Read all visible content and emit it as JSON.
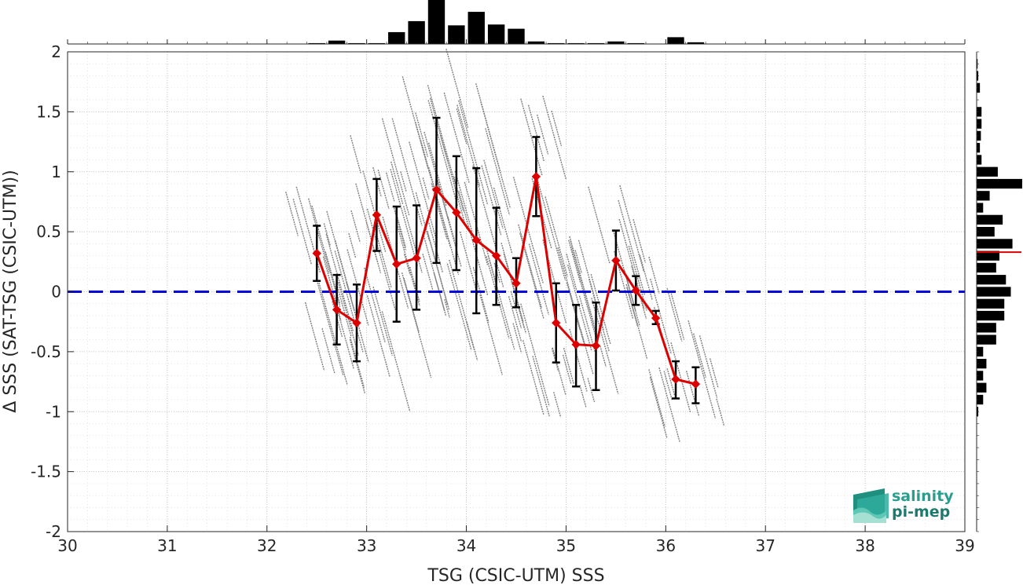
{
  "chart_data": {
    "type": "scatter",
    "xlabel": "TSG (CSIC-UTM) SSS",
    "ylabel": "Δ SSS (SAT-TSG (CSIC-UTM))",
    "xlim": [
      30,
      39
    ],
    "ylim": [
      -2,
      2
    ],
    "xticks": [
      30,
      31,
      32,
      33,
      34,
      35,
      36,
      37,
      38,
      39
    ],
    "yticks": [
      2,
      1.5,
      1,
      0.5,
      0,
      -0.5,
      -1,
      -1.5,
      -2
    ],
    "ytick_labels": [
      "2",
      "1.5",
      "1",
      "0.5",
      "0",
      "-0.5",
      "-1",
      "-1.5",
      "-2"
    ],
    "grid": true,
    "reference_line": {
      "y": 0,
      "color": "#0000dd",
      "style": "dashed"
    },
    "series": [
      {
        "color": "#dd0000",
        "marker": "diamond",
        "x": [
          32.5,
          32.7,
          32.9,
          33.1,
          33.3,
          33.5,
          33.7,
          33.9,
          34.1,
          34.3,
          34.5,
          34.7,
          34.9,
          35.1,
          35.3,
          35.5,
          35.7,
          35.9,
          36.1,
          36.3
        ],
        "y": [
          0.32,
          -0.15,
          -0.26,
          0.64,
          0.23,
          0.28,
          0.85,
          0.66,
          0.43,
          0.3,
          0.07,
          0.96,
          -0.26,
          -0.44,
          -0.45,
          0.26,
          0.01,
          -0.22,
          -0.73,
          -0.77
        ],
        "err_low": [
          0.09,
          -0.44,
          -0.58,
          0.34,
          -0.25,
          -0.15,
          0.24,
          0.18,
          -0.18,
          -0.11,
          -0.13,
          0.63,
          -0.59,
          -0.79,
          -0.82,
          0.01,
          -0.11,
          -0.27,
          -0.89,
          -0.93
        ],
        "err_high": [
          0.55,
          0.14,
          0.06,
          0.94,
          0.71,
          0.72,
          1.45,
          1.13,
          1.03,
          0.7,
          0.28,
          1.29,
          0.07,
          -0.11,
          -0.09,
          0.51,
          0.13,
          -0.16,
          -0.58,
          -0.63
        ]
      }
    ],
    "scatter_cloud": {
      "color": "#808080",
      "x_range": [
        32.6,
        36.4
      ],
      "y_range": [
        -1.0,
        1.95
      ]
    },
    "histogram_top": {
      "bin_centers": [
        32.5,
        32.7,
        32.9,
        33.1,
        33.3,
        33.5,
        33.7,
        33.9,
        34.1,
        34.3,
        34.5,
        34.7,
        34.9,
        35.1,
        35.3,
        35.5,
        35.7,
        35.9,
        36.1,
        36.3
      ],
      "counts": [
        1,
        4,
        1,
        1,
        14,
        27,
        52,
        22,
        38,
        23,
        18,
        3,
        1,
        1,
        1,
        3,
        1,
        0,
        8,
        2
      ]
    },
    "histogram_right": {
      "bin_centers": [
        1.9,
        1.8,
        1.7,
        1.6,
        1.5,
        1.4,
        1.3,
        1.2,
        1.1,
        1.0,
        0.9,
        0.8,
        0.7,
        0.6,
        0.5,
        0.4,
        0.3,
        0.2,
        0.1,
        0.0,
        -0.1,
        -0.2,
        -0.3,
        -0.4,
        -0.5,
        -0.6,
        -0.7,
        -0.8,
        -0.9,
        -1.0
      ],
      "counts": [
        0.3,
        0.5,
        1,
        0,
        1.5,
        1.5,
        1.3,
        1,
        1.5,
        6.5,
        14,
        4,
        2,
        8,
        5.5,
        11,
        7,
        6,
        9,
        10.5,
        8.5,
        8.5,
        6,
        6,
        2,
        3,
        2,
        3,
        2,
        0.5
      ],
      "median_line": {
        "y": 0.33,
        "color": "#dd0000"
      }
    }
  },
  "logo": {
    "line1": "salinity",
    "line2": "pi-mep",
    "accent_color": "#2a9d8f"
  }
}
